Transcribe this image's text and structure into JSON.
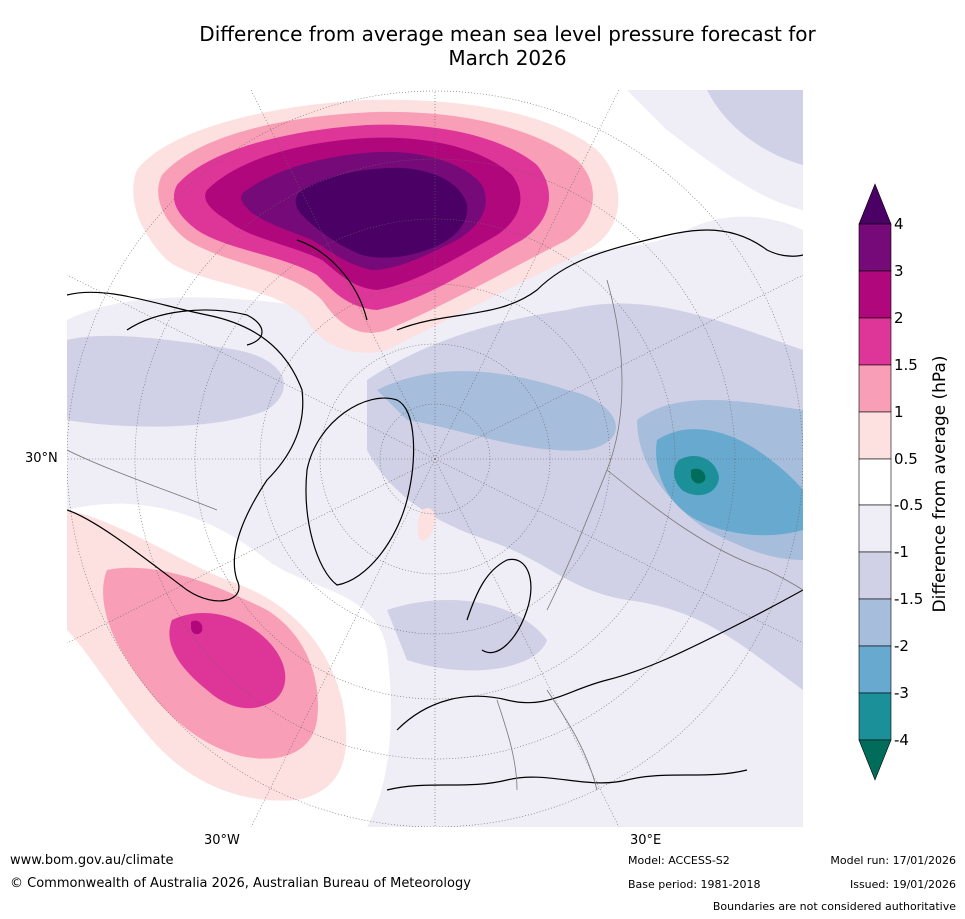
{
  "title_line1": "Difference from average mean sea level pressure forecast for",
  "title_line2": "March 2026",
  "colorbar": {
    "label": "Difference from average (hPa)",
    "tick_labels": [
      "4",
      "3",
      "2",
      "1.5",
      "1",
      "0.5",
      "-0.5",
      "-1",
      "-1.5",
      "-2",
      "-3",
      "-4"
    ],
    "colors": [
      "#4a0064",
      "#760a79",
      "#b0087c",
      "#de3598",
      "#f99eb7",
      "#fde0e0",
      "#ffffff",
      "#efedf5",
      "#d0d1e6",
      "#a6bddb",
      "#67a9cf",
      "#1c9099",
      "#016c59"
    ]
  },
  "graticule_labels": {
    "lat_30n": "30°N",
    "lon_30w": "30°W",
    "lon_30e": "30°E"
  },
  "footer": {
    "url": "www.bom.gov.au/climate",
    "copyright": "© Commonwealth of Australia 2026, Australian Bureau of Meteorology",
    "model": "Model: ACCESS-S2",
    "base_period": "Base period: 1981-2018",
    "model_run": "Model run: 17/01/2026",
    "issued": "Issued: 19/01/2026",
    "disclaimer": "Boundaries are not considered authoritative"
  }
}
